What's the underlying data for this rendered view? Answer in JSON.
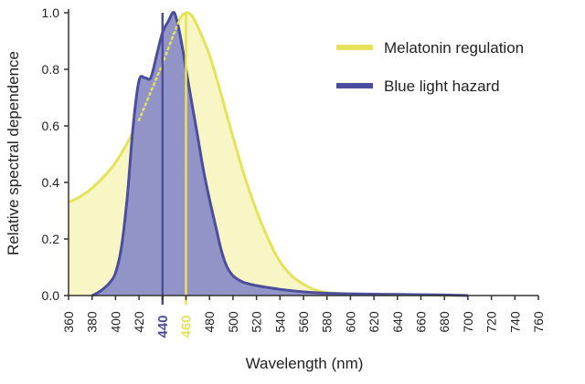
{
  "chart_data": {
    "type": "area",
    "xlabel": "Wavelength (nm)",
    "ylabel": "Relative spectral dependence",
    "xlim": [
      360,
      760
    ],
    "ylim": [
      0,
      1.0
    ],
    "x_ticks": [
      360,
      380,
      400,
      420,
      440,
      460,
      480,
      500,
      520,
      540,
      560,
      580,
      600,
      620,
      640,
      660,
      680,
      700,
      720,
      740,
      760
    ],
    "y_ticks": [
      0.0,
      0.2,
      0.4,
      0.6,
      0.8,
      1.0
    ],
    "y_tick_labels": [
      "0.0",
      "0.2",
      "0.4",
      "0.6",
      "0.8",
      "1.0"
    ],
    "grid": false,
    "legend_position": "top-right",
    "series": [
      {
        "name": "Melatonin regulation",
        "color": "#e4e35a",
        "fill": "#f7f6c4",
        "x": [
          360,
          370,
          380,
          390,
          400,
          410,
          420,
          430,
          440,
          450,
          455,
          460,
          465,
          470,
          480,
          490,
          500,
          510,
          520,
          530,
          540,
          550,
          560,
          570,
          580,
          600,
          620,
          660,
          700
        ],
        "values": [
          0.33,
          0.35,
          0.38,
          0.42,
          0.47,
          0.54,
          0.62,
          0.72,
          0.82,
          0.93,
          0.98,
          1.0,
          0.99,
          0.95,
          0.85,
          0.71,
          0.56,
          0.42,
          0.3,
          0.2,
          0.12,
          0.07,
          0.04,
          0.02,
          0.01,
          0.005,
          0.003,
          0.002,
          0.0
        ]
      },
      {
        "name": "Blue light hazard",
        "color": "#4b4e9c",
        "fill": "#9294c8",
        "x": [
          380,
          385,
          390,
          395,
          400,
          405,
          410,
          415,
          420,
          425,
          430,
          435,
          440,
          445,
          450,
          455,
          460,
          465,
          470,
          475,
          480,
          485,
          490,
          495,
          500,
          505,
          510,
          520,
          540,
          560,
          580,
          600,
          640,
          680,
          700
        ],
        "values": [
          0.0,
          0.01,
          0.025,
          0.045,
          0.08,
          0.17,
          0.35,
          0.6,
          0.76,
          0.77,
          0.77,
          0.85,
          0.93,
          0.97,
          1.0,
          0.92,
          0.8,
          0.68,
          0.56,
          0.44,
          0.34,
          0.25,
          0.16,
          0.1,
          0.07,
          0.055,
          0.045,
          0.035,
          0.022,
          0.013,
          0.008,
          0.006,
          0.004,
          0.002,
          0.0
        ]
      }
    ],
    "annotations": [
      {
        "x": 440,
        "label": "440",
        "color": "#4b4e9c"
      },
      {
        "x": 460,
        "label": "460",
        "color": "#e4e35a"
      }
    ],
    "dotted_segment": {
      "color": "#e4e35a",
      "x": [
        420,
        430,
        440,
        450,
        455
      ],
      "values": [
        0.62,
        0.72,
        0.82,
        0.93,
        0.98
      ]
    }
  }
}
